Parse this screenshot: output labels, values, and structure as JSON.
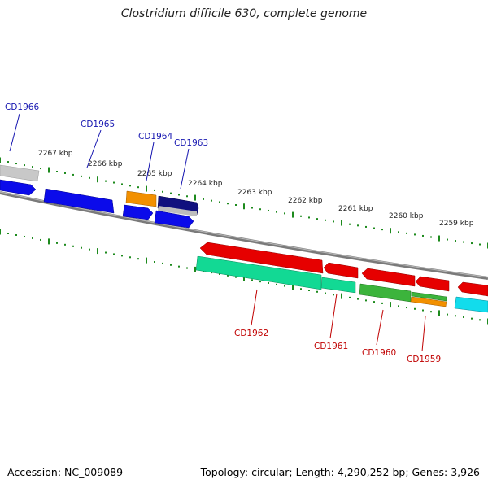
{
  "title": "Clostridium difficile 630, complete genome",
  "accession": "Accession: NC_009089",
  "summary": "Topology: circular; Length: 4,290,252 bp; Genes: 3,926",
  "kbp_labels": [
    "2267 kbp",
    "2266 kbp",
    "2265 kbp",
    "2264 kbp",
    "2263 kbp",
    "2262 kbp",
    "2261 kbp",
    "2260 kbp",
    "2259 kbp"
  ],
  "genes_top": [
    "CD1966",
    "CD1965",
    "CD1964",
    "CD1963"
  ],
  "genes_bottom": [
    "CD1962",
    "CD1961",
    "CD1960",
    "CD1959"
  ],
  "colors": {
    "backbone": "#7f7f7f",
    "tick": "#1d8a1d",
    "blue": "#0a0ae6",
    "navy": "#0a0a7a",
    "orange": "#f28c00",
    "grey": "#b5b5b5",
    "red": "#e60000",
    "teal": "#10d890",
    "green": "#3cb43c",
    "cyan": "#10dcea"
  }
}
